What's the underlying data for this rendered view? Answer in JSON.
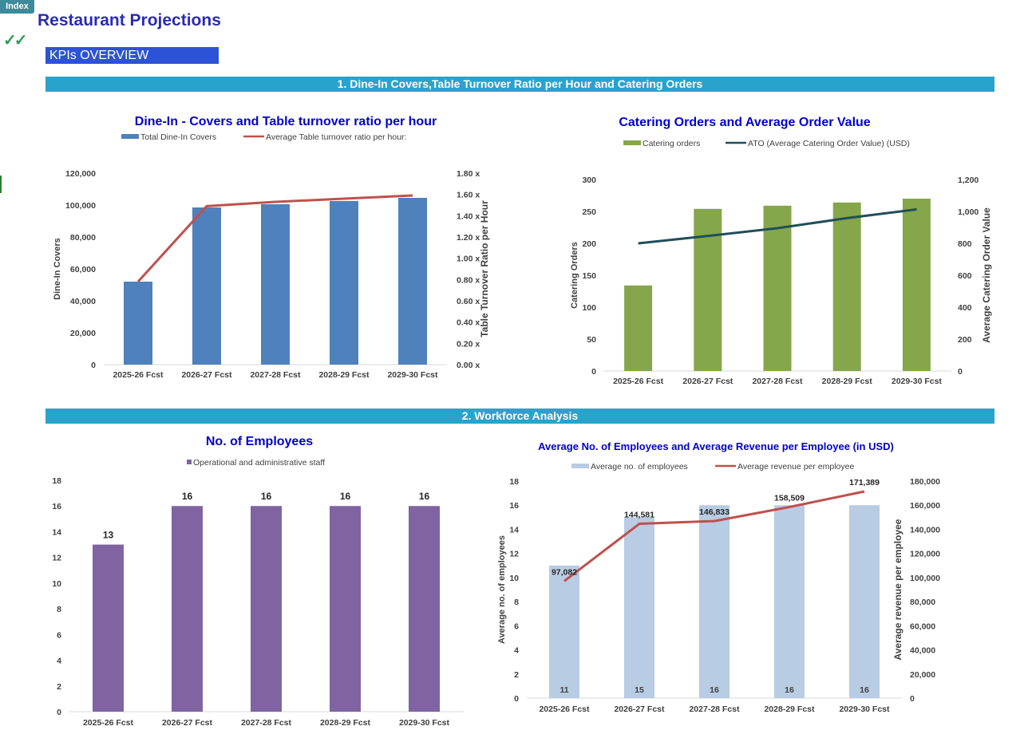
{
  "header": {
    "index_label": "Index",
    "checkmarks": "✓✓",
    "title": "Restaurant Projections",
    "kpi_label": "KPIs OVERVIEW"
  },
  "sections": {
    "s1": "1. Dine-In Covers,Table Turnover Ratio per Hour and  Catering Orders",
    "s2": "2. Workforce Analysis"
  },
  "colors": {
    "blue_bar": "#4f81bd",
    "red_line": "#c0504d",
    "green_bar": "#86a64b",
    "teal_line": "#1f4e5a",
    "purple_bar": "#8064a2",
    "light_blue_bar": "#b8cce4",
    "title_blue": "#0000cc",
    "section_band": "#2aa3cc"
  },
  "chart_data": [
    {
      "type": "bar",
      "title": "Dine-In - Covers and  Table turnover ratio per hour",
      "categories": [
        "2025-26 Fcst",
        "2026-27 Fcst",
        "2027-28 Fcst",
        "2028-29 Fcst",
        "2029-30 Fcst"
      ],
      "series": [
        {
          "name": "Total Dine-In Covers",
          "kind": "bar",
          "axis": "left",
          "values": [
            52000,
            98500,
            100500,
            102500,
            104500
          ]
        },
        {
          "name": "Average Table turnover ratio per hour:",
          "kind": "line",
          "axis": "right",
          "values": [
            0.78,
            1.49,
            1.53,
            1.56,
            1.59
          ]
        }
      ],
      "ylabel": "Dine-In Covers",
      "y2label": "Table Turnover Ratio per Hour",
      "ylim": [
        0,
        120000
      ],
      "y2lim": [
        0,
        1.8
      ],
      "yticks": [
        "0",
        "20,000",
        "40,000",
        "60,000",
        "80,000",
        "100,000",
        "120,000"
      ],
      "y2ticks": [
        "0.00 x",
        "0.20 x",
        "0.40 x",
        "0.60 x",
        "0.80 x",
        "1.00 x",
        "1.20 x",
        "1.40 x",
        "1.60 x",
        "1.80 x"
      ],
      "legend": "top"
    },
    {
      "type": "bar",
      "title": "Catering Orders and Average Order Value",
      "categories": [
        "2025-26 Fcst",
        "2026-27 Fcst",
        "2027-28 Fcst",
        "2028-29 Fcst",
        "2029-30 Fcst"
      ],
      "series": [
        {
          "name": "Catering orders",
          "kind": "bar",
          "axis": "left",
          "values": [
            134,
            254,
            259,
            264,
            270
          ]
        },
        {
          "name": "ATO (Average Catering Order Value) (USD)",
          "kind": "line",
          "axis": "right",
          "values": [
            800,
            846,
            895,
            958,
            1013
          ]
        }
      ],
      "ylabel": "Catering Orders",
      "y2label": "Average Catering Order Value",
      "ylim": [
        0,
        300
      ],
      "y2lim": [
        0,
        1200
      ],
      "yticks": [
        "0",
        "50",
        "100",
        "150",
        "200",
        "250",
        "300"
      ],
      "y2ticks": [
        "0",
        "200",
        "400",
        "600",
        "800",
        "1,000",
        "1,200"
      ],
      "legend": "top"
    },
    {
      "type": "bar",
      "title": "No. of Employees",
      "categories": [
        "2025-26 Fcst",
        "2026-27 Fcst",
        "2027-28 Fcst",
        "2028-29 Fcst",
        "2029-30 Fcst"
      ],
      "series": [
        {
          "name": "Operational and administrative staff",
          "kind": "bar",
          "axis": "left",
          "values": [
            13,
            16,
            16,
            16,
            16
          ],
          "labels": [
            "13",
            "16",
            "16",
            "16",
            "16"
          ]
        }
      ],
      "ylim": [
        0,
        18
      ],
      "yticks": [
        "0",
        "2",
        "4",
        "6",
        "8",
        "10",
        "12",
        "14",
        "16",
        "18"
      ],
      "legend": "top"
    },
    {
      "type": "bar",
      "title": "Average No. of Employees and Average Revenue per Employee (in USD)",
      "categories": [
        "2025-26 Fcst",
        "2026-27 Fcst",
        "2027-28 Fcst",
        "2028-29 Fcst",
        "2029-30 Fcst"
      ],
      "series": [
        {
          "name": "Average no. of employees",
          "kind": "bar",
          "axis": "left",
          "values": [
            11,
            15,
            16,
            16,
            16
          ],
          "labels": [
            "11",
            "15",
            "16",
            "16",
            "16"
          ]
        },
        {
          "name": "Average revenue per employee",
          "kind": "line",
          "axis": "right",
          "values": [
            97082,
            144581,
            146833,
            158509,
            171389
          ],
          "labels": [
            "97,082",
            "144,581",
            "146,833",
            "158,509",
            "171,389"
          ]
        }
      ],
      "ylabel": "Average no. of  employees",
      "y2label": "Average revenue per employee",
      "ylim": [
        0,
        18
      ],
      "y2lim": [
        0,
        180000
      ],
      "yticks": [
        "0",
        "2",
        "4",
        "6",
        "8",
        "10",
        "12",
        "14",
        "16",
        "18"
      ],
      "y2ticks": [
        "0",
        "20,000",
        "40,000",
        "60,000",
        "80,000",
        "100,000",
        "120,000",
        "140,000",
        "160,000",
        "180,000"
      ],
      "legend": "top"
    }
  ]
}
